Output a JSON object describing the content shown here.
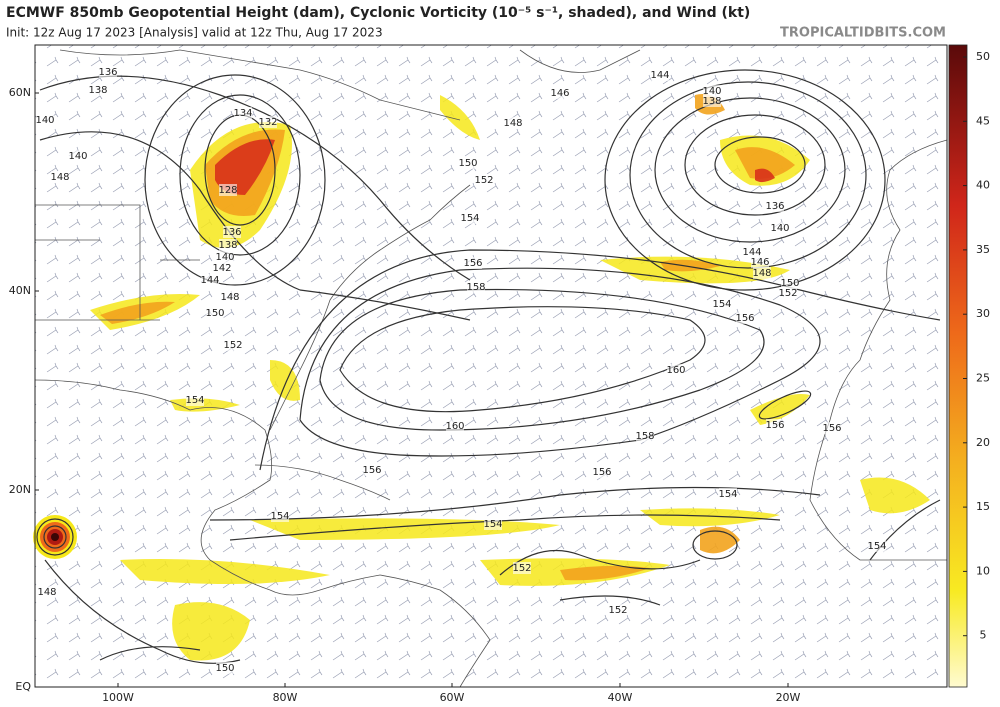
{
  "header": {
    "title": "ECMWF 850mb Geopotential Height (dam), Cyclonic Vorticity (10⁻⁵ s⁻¹, shaded), and Wind (kt)",
    "subtitle": "Init: 12z Aug 17 2023   [Analysis]   valid at 12z Thu, Aug 17 2023",
    "credit": "TROPICALTIDBITS.COM"
  },
  "map": {
    "lat_labels": [
      "60N",
      "40N",
      "20N",
      "EQ"
    ],
    "lon_labels": [
      "100W",
      "80W",
      "60W",
      "40W",
      "20W"
    ],
    "contour_labels": [
      136,
      138,
      140,
      140,
      148,
      134,
      132,
      128,
      136,
      138,
      140,
      142,
      144,
      148,
      150,
      152,
      146,
      148,
      150,
      152,
      154,
      156,
      158,
      144,
      140,
      138,
      136,
      140,
      144,
      146,
      148,
      150,
      152,
      154,
      156,
      160,
      160,
      158,
      156,
      154,
      154,
      154,
      156,
      154,
      156,
      156,
      154,
      152,
      152,
      150,
      148
    ]
  },
  "colorbar": {
    "ticks": [
      5,
      10,
      15,
      20,
      25,
      30,
      35,
      40,
      45,
      50
    ]
  }
}
